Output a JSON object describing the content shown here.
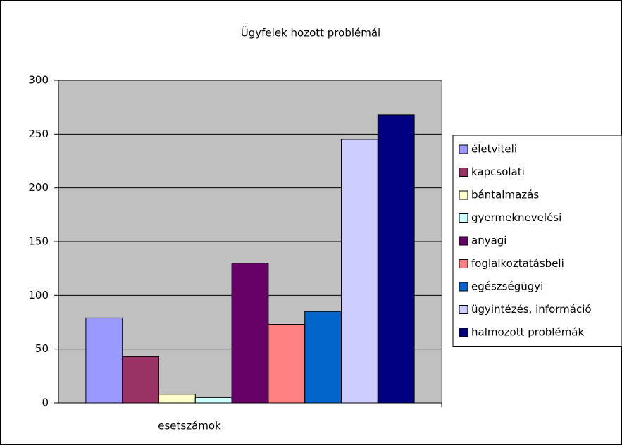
{
  "chart_data": {
    "type": "bar",
    "title": "Ügyfelek hozott problémái",
    "categories": [
      "esetszámok"
    ],
    "series": [
      {
        "name": "életviteli",
        "color": "#9999ff",
        "values": [
          79
        ]
      },
      {
        "name": "kapcsolati",
        "color": "#993366",
        "values": [
          43
        ]
      },
      {
        "name": "bántalmazás",
        "color": "#ffffcc",
        "values": [
          8
        ]
      },
      {
        "name": "gyermeknevelési",
        "color": "#ccffff",
        "values": [
          5
        ]
      },
      {
        "name": "anyagi",
        "color": "#660066",
        "values": [
          130
        ]
      },
      {
        "name": "foglalkoztatásbeli",
        "color": "#ff8080",
        "values": [
          73
        ]
      },
      {
        "name": "egészségügyi",
        "color": "#0066cc",
        "values": [
          85
        ]
      },
      {
        "name": "ügyintézés, információ",
        "color": "#ccccff",
        "values": [
          245
        ]
      },
      {
        "name": "halmozott problémák",
        "color": "#000080",
        "values": [
          268
        ]
      }
    ],
    "ylim": [
      0,
      300
    ],
    "yticks": [
      0,
      50,
      100,
      150,
      200,
      250,
      300
    ],
    "grid": true,
    "legend": "right"
  }
}
